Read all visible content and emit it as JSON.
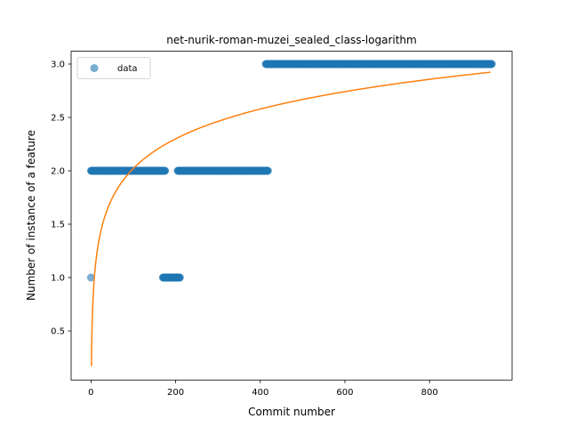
{
  "chart_data": {
    "type": "scatter",
    "title": "net-nurik-roman-muzei_sealed_class-logarithm",
    "xlabel": "Commit number",
    "ylabel": "Number of instance of a feature",
    "xlim": [
      -47,
      995
    ],
    "ylim": [
      0.04,
      3.12
    ],
    "x_ticks": [
      0,
      200,
      400,
      600,
      800
    ],
    "y_ticks": [
      0.5,
      1.0,
      1.5,
      2.0,
      2.5,
      3.0
    ],
    "x_tick_labels": [
      "0",
      "200",
      "400",
      "600",
      "800"
    ],
    "y_tick_labels": [
      "0.5",
      "1.0",
      "1.5",
      "2.0",
      "2.5",
      "3.0"
    ],
    "grid": false,
    "legend": {
      "placement": "top-left",
      "entries": [
        "data"
      ]
    },
    "series": [
      {
        "name": "data",
        "kind": "scatter",
        "color": "#1f77b4",
        "segments": [
          {
            "x_start": 0,
            "x_end": 0,
            "y": 1.0
          },
          {
            "x_start": 0,
            "x_end": 175,
            "y": 2.0
          },
          {
            "x_start": 170,
            "x_end": 210,
            "y": 1.0
          },
          {
            "x_start": 205,
            "x_end": 418,
            "y": 2.0
          },
          {
            "x_start": 413,
            "x_end": 947,
            "y": 3.0
          }
        ]
      },
      {
        "kind": "line",
        "color": "#ff7f0e",
        "function": "a + b*ln(x)",
        "coefficients": {
          "a": 0.17,
          "b": 0.402
        },
        "x_range": [
          1,
          945
        ]
      }
    ]
  }
}
